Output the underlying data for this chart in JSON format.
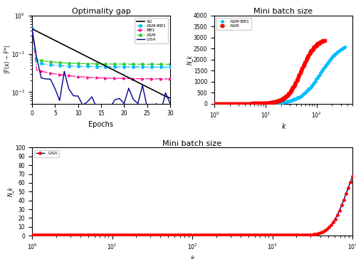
{
  "title_opt": "Optimality gap",
  "title_mbs1": "Mini batch size",
  "title_mbs2": "Mini batch size",
  "xlabel_opt": "Epochs",
  "xlabel_mbs1": "k",
  "xlabel_mbs2": "k",
  "ylabel_opt": "|F(x) − F*|",
  "ylabel_mbs1": "N_k",
  "ylabel_mbs2": "N_k",
  "sg_color": "#000000",
  "asmbb1_color": "#00BFFF",
  "bb1_color": "#FF1493",
  "asm_color": "#32CD32",
  "lisa_color": "#00008B",
  "red_marker": "#FF0000",
  "opt_ylim": [
    0.005,
    1.0
  ],
  "mbs1_ylim": [
    0,
    4000
  ],
  "mbs1_xlim": [
    1,
    500
  ],
  "mbs2_ylim": [
    0,
    100
  ],
  "mbs2_xlim": [
    1,
    10000
  ]
}
